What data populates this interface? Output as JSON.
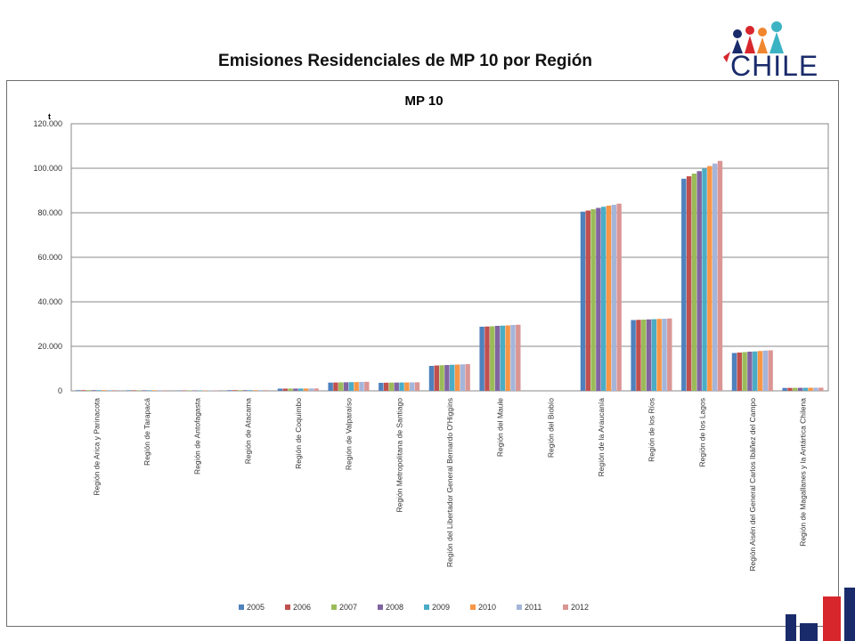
{
  "slide_title": "Emisiones Residenciales de MP 10 por Región",
  "logo_text": "CHILE",
  "colors": {
    "series": [
      "#4F81BD",
      "#C0504D",
      "#9BBB59",
      "#8064A2",
      "#4BACC6",
      "#F79646",
      "#A5B5DA",
      "#DA9694"
    ],
    "brand_blue": "#1a2b6b",
    "brand_red": "#d7262c"
  },
  "chart_data": {
    "type": "bar",
    "title": "MP 10",
    "ylabel": "t",
    "ylim": [
      0,
      120000
    ],
    "yticks": [
      0,
      20000,
      40000,
      60000,
      80000,
      100000,
      120000
    ],
    "ytick_labels": [
      "0",
      "20.000",
      "40.000",
      "60.000",
      "80.000",
      "100.000",
      "120.000"
    ],
    "grid": true,
    "legend_position": "bottom",
    "categories": [
      "Región de Arica y Parinacota",
      "Región de Tarapacá",
      "Región de Antofagasta",
      "Región de Atacama",
      "Región de Coquimbo",
      "Región de Valparaíso",
      "Región Metropolitana de Santiago",
      "Región del Libertador General Bernardo O'Higgins",
      "Región del Maule",
      "Región del Biobío",
      "Región de la Araucanía",
      "Región de los Ríos",
      "Región de los Lagos",
      "Región Aisén del General Carlos Ibáñez del Campo",
      "Región de Magallanes y la Antártica Chilena"
    ],
    "series": [
      {
        "name": "2005",
        "values": [
          300,
          250,
          200,
          300,
          1000,
          3700,
          3600,
          11200,
          28800,
          0,
          80500,
          31800,
          95300,
          17000,
          1300
        ]
      },
      {
        "name": "2006",
        "values": [
          300,
          250,
          200,
          300,
          1000,
          3750,
          3650,
          11400,
          28900,
          0,
          81000,
          31900,
          96400,
          17200,
          1320
        ]
      },
      {
        "name": "2007",
        "values": [
          310,
          255,
          205,
          305,
          1020,
          3800,
          3700,
          11500,
          29000,
          0,
          81600,
          32000,
          97600,
          17400,
          1340
        ]
      },
      {
        "name": "2008",
        "values": [
          310,
          255,
          205,
          305,
          1030,
          3850,
          3720,
          11600,
          29200,
          0,
          82200,
          32100,
          98700,
          17600,
          1360
        ]
      },
      {
        "name": "2009",
        "values": [
          315,
          260,
          210,
          310,
          1040,
          3900,
          3750,
          11700,
          29300,
          0,
          82700,
          32200,
          99800,
          17700,
          1370
        ]
      },
      {
        "name": "2010",
        "values": [
          315,
          260,
          210,
          310,
          1050,
          3950,
          3780,
          11800,
          29400,
          0,
          83200,
          32300,
          101000,
          17900,
          1390
        ]
      },
      {
        "name": "2011",
        "values": [
          320,
          265,
          215,
          315,
          1060,
          4000,
          3800,
          11900,
          29600,
          0,
          83600,
          32400,
          102100,
          18100,
          1400
        ]
      },
      {
        "name": "2012",
        "values": [
          320,
          265,
          215,
          315,
          1070,
          4050,
          3850,
          12000,
          29700,
          0,
          84100,
          32500,
          103300,
          18200,
          1420
        ]
      }
    ]
  }
}
